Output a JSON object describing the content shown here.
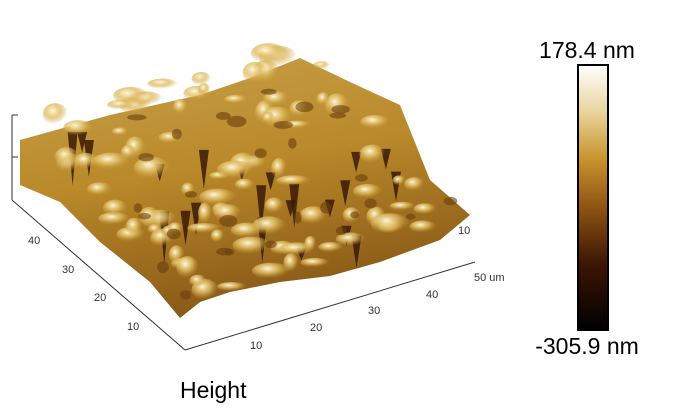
{
  "colorbar": {
    "max_label": "178.4 nm",
    "min_label": "-305.9 nm"
  },
  "caption": "Height",
  "axes": {
    "left_ticks": [
      "10",
      "20",
      "30",
      "40"
    ],
    "right_ticks": [
      "10",
      "20",
      "30",
      "40",
      "50 um"
    ],
    "back_tick": "10"
  }
}
